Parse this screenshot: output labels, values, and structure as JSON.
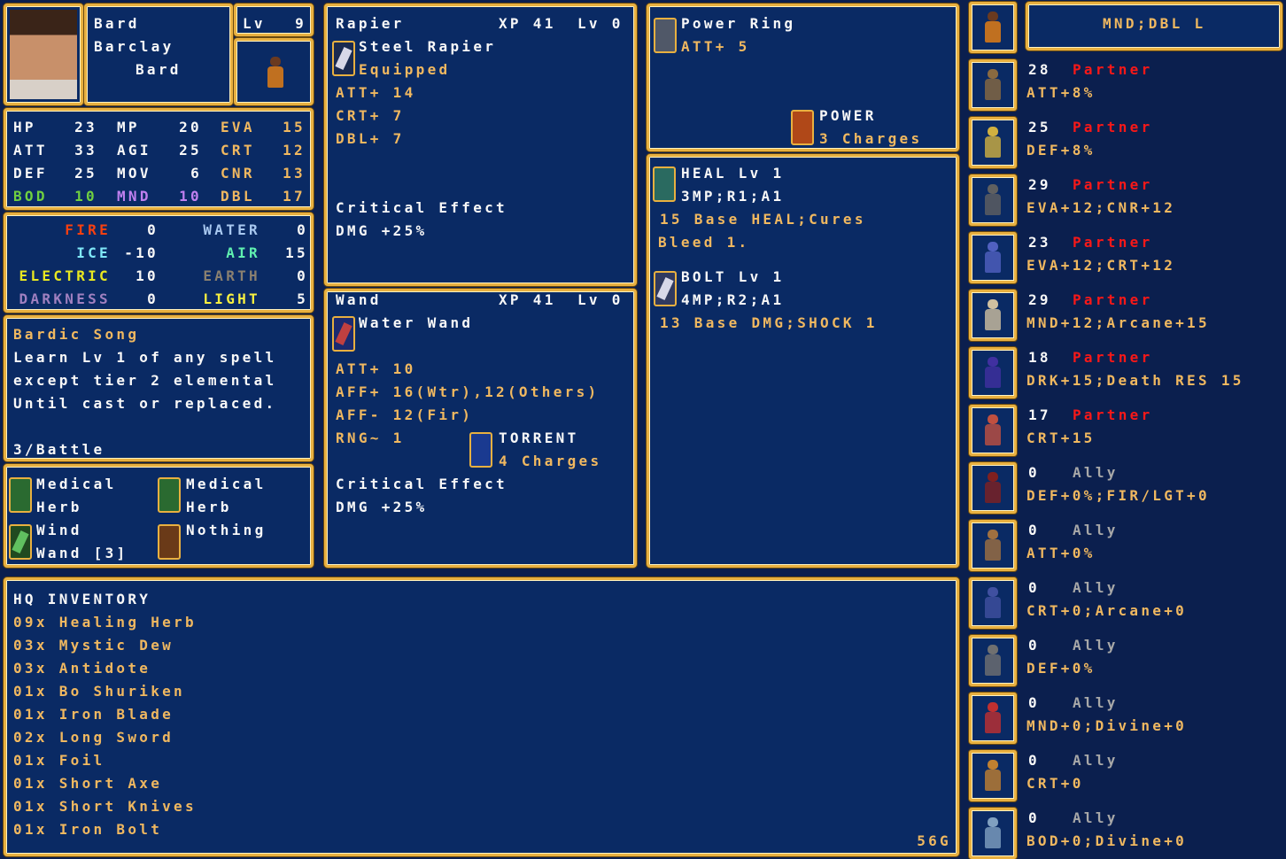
{
  "character": {
    "title": "Bard",
    "name": "Barclay",
    "class": "Bard",
    "level_label": "Lv",
    "level": "9"
  },
  "stats": {
    "HP": "23",
    "MP": "20",
    "EVA": "15",
    "ATT": "33",
    "AGI": "25",
    "CRT": "12",
    "DEF": "25",
    "MOV": "6",
    "CNR": "13",
    "BOD": "10",
    "MND": "10",
    "DBL": "17"
  },
  "elements": {
    "FIRE": "0",
    "WATER": "0",
    "ICE": "-10",
    "AIR": "15",
    "ELECTRIC": "10",
    "EARTH": "0",
    "DARKNESS": "0",
    "LIGHT": "5"
  },
  "skill": {
    "name": "Bardic Song",
    "lines": [
      "Learn Lv 1 of any spell",
      "except tier 2 elemental",
      "Until cast or replaced."
    ],
    "uses": "3/Battle"
  },
  "items": [
    {
      "line1": "Medical",
      "line2": "Herb",
      "icon": "herb-icon"
    },
    {
      "line1": "Medical",
      "line2": "Herb",
      "icon": "herb-icon"
    },
    {
      "line1": "Wind",
      "line2": "Wand [3]",
      "icon": "wand-icon"
    },
    {
      "line1": "Nothing",
      "line2": "",
      "icon": "hand-icon"
    }
  ],
  "weapon1": {
    "type": "Rapier",
    "xp": "XP 41",
    "lv": "Lv 0",
    "name": "Steel Rapier",
    "status": "Equipped",
    "stats": [
      "ATT+ 14",
      "CRT+ 7",
      "DBL+ 7"
    ],
    "crit_label": "Critical Effect",
    "crit_value": "DMG +25%"
  },
  "weapon2": {
    "type": "Wand",
    "xp": "XP 41",
    "lv": "Lv 0",
    "name": "Water Wand",
    "stats": [
      "ATT+ 10",
      "AFF+ 16(Wtr),12(Others)",
      "AFF- 12(Fir)",
      "RNG~ 1"
    ],
    "spell": "TORRENT",
    "charges": "4 Charges",
    "crit_label": "Critical Effect",
    "crit_value": "DMG +25%"
  },
  "accessory": {
    "name": "Power Ring",
    "stat": "ATT+ 5",
    "spell": "POWER",
    "charges": "3 Charges"
  },
  "spells": [
    {
      "name": "HEAL Lv 1",
      "cost": "3MP;R1;A1",
      "desc1": "15 Base HEAL;Cures",
      "desc2": "Bleed 1."
    },
    {
      "name": "BOLT Lv 1",
      "cost": "4MP;R2;A1",
      "desc1": "13 Base DMG;SHOCK 1",
      "desc2": ""
    }
  ],
  "inventory": {
    "title": "HQ INVENTORY",
    "items": [
      "09x Healing Herb",
      "03x Mystic Dew",
      "03x Antidote",
      "01x Bo Shuriken",
      "01x Iron Blade",
      "02x Long Sword",
      "01x Foil",
      "01x Short Axe",
      "01x Short Knives",
      "01x Iron Bolt"
    ],
    "gold": "56G"
  },
  "relations": {
    "header": "MND;DBL L",
    "list": [
      {
        "value": "28",
        "type": "Partner",
        "effect": "ATT+8%"
      },
      {
        "value": "25",
        "type": "Partner",
        "effect": "DEF+8%"
      },
      {
        "value": "29",
        "type": "Partner",
        "effect": "EVA+12;CNR+12"
      },
      {
        "value": "23",
        "type": "Partner",
        "effect": "EVA+12;CRT+12"
      },
      {
        "value": "29",
        "type": "Partner",
        "effect": "MND+12;Arcane+15"
      },
      {
        "value": "18",
        "type": "Partner",
        "effect": "DRK+15;Death RES 15"
      },
      {
        "value": "17",
        "type": "Partner",
        "effect": "CRT+15"
      },
      {
        "value": "0",
        "type": "Ally",
        "effect": "DEF+0%;FIR/LGT+0"
      },
      {
        "value": "0",
        "type": "Ally",
        "effect": "ATT+0%"
      },
      {
        "value": "0",
        "type": "Ally",
        "effect": "CRT+0;Arcane+0"
      },
      {
        "value": "0",
        "type": "Ally",
        "effect": "DEF+0%"
      },
      {
        "value": "0",
        "type": "Ally",
        "effect": "MND+0;Divine+0"
      },
      {
        "value": "0",
        "type": "Ally",
        "effect": "CRT+0"
      },
      {
        "value": "0",
        "type": "Ally",
        "effect": "BOD+0;Divine+0"
      }
    ]
  },
  "colors": {
    "background": "#0a2a64",
    "border": "#e8b040",
    "text": "#f8f8f8",
    "accent": "#f0b860",
    "partner": "#f81818",
    "ally": "#a8a8a8",
    "bod": "#70d040",
    "mnd": "#c080f0",
    "fire": "#f84010",
    "water": "#a8c8f0",
    "ice": "#80e8f8",
    "air": "#60f0b0",
    "electric": "#e8e820",
    "earth": "#8a8070",
    "darkness": "#a080c0",
    "light": "#f8f040"
  }
}
